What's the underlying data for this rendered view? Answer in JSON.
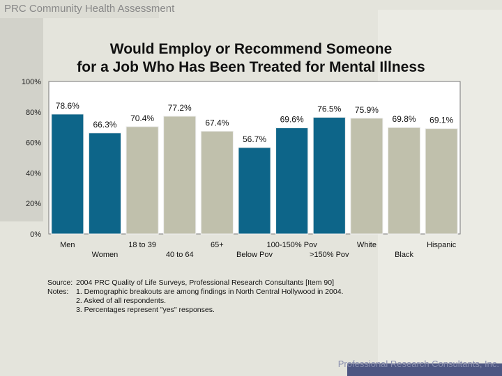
{
  "header": {
    "title": "PRC Community Health Assessment"
  },
  "chart_data": {
    "type": "bar",
    "title_line1": "Would Employ or Recommend Someone",
    "title_line2": "for a Job Who Has Been Treated for Mental Illness",
    "categories": [
      "Men",
      "Women",
      "18 to 39",
      "40 to 64",
      "65+",
      "Below Pov",
      "100-150% Pov",
      ">150% Pov",
      "White",
      "Black",
      "Hispanic"
    ],
    "values": [
      78.6,
      66.3,
      70.4,
      77.2,
      67.4,
      56.7,
      69.6,
      76.5,
      75.9,
      69.8,
      69.1
    ],
    "value_labels": [
      "78.6%",
      "66.3%",
      "70.4%",
      "77.2%",
      "67.4%",
      "56.7%",
      "69.6%",
      "76.5%",
      "75.9%",
      "69.8%",
      "69.1%"
    ],
    "bar_colors": [
      "#0d6589",
      "#0d6589",
      "#c0c0ac",
      "#c0c0ac",
      "#c0c0ac",
      "#0d6589",
      "#0d6589",
      "#0d6589",
      "#c0c0ac",
      "#c0c0ac",
      "#c0c0ac"
    ],
    "label_rows": [
      0,
      1,
      0,
      1,
      0,
      1,
      0,
      1,
      0,
      1,
      0
    ],
    "yticks": [
      "0%",
      "20%",
      "40%",
      "60%",
      "80%",
      "100%"
    ],
    "ylim": [
      0,
      100
    ],
    "xlabel": "",
    "ylabel": ""
  },
  "notes": {
    "source_label": "Source:",
    "source_text": "2004 PRC Quality of Life Surveys, Professional Research Consultants [Item 90]",
    "notes_label": "Notes:",
    "note1": "1. Demographic breakouts are among findings in North Central Hollywood in 2004.",
    "note2": "2. Asked of all respondents.",
    "note3": "3. Percentages represent \"yes\" responses."
  },
  "footer": {
    "text": "Professional Research Consultants, Inc."
  }
}
